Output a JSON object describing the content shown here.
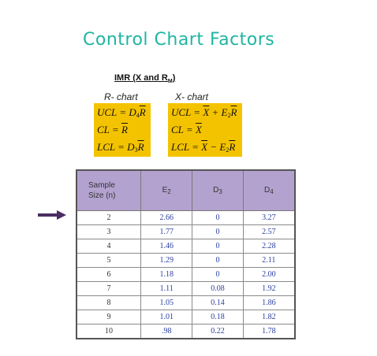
{
  "title": "Control Chart Factors",
  "heading": {
    "main": "IMR  (X and R",
    "sub": "M",
    "close": ")"
  },
  "r_chart": {
    "label": "R- chart",
    "lines": [
      {
        "a": "UCL = D",
        "sub": "4",
        "b": "R"
      },
      {
        "a": "CL = ",
        "sub": "",
        "b": "R"
      },
      {
        "a": "LCL = D",
        "sub": "3",
        "b": "R"
      }
    ]
  },
  "x_chart": {
    "label": "X- chart",
    "lines": [
      {
        "a": "UCL = ",
        "x": "X",
        "mid": " + E",
        "sub": "2",
        "b": "R"
      },
      {
        "a": "CL = ",
        "x": "X",
        "mid": "",
        "sub": "",
        "b": ""
      },
      {
        "a": "LCL = ",
        "x": "X",
        "mid": " − E",
        "sub": "2",
        "b": "R"
      }
    ]
  },
  "table": {
    "headers": [
      {
        "main": "Sample",
        "line2": "Size (n)",
        "sub": ""
      },
      {
        "main": "E",
        "line2": "",
        "sub": "2"
      },
      {
        "main": "D",
        "line2": "",
        "sub": "3"
      },
      {
        "main": "D",
        "line2": "",
        "sub": "4"
      }
    ],
    "rows": [
      [
        "2",
        "2.66",
        "0",
        "3.27"
      ],
      [
        "3",
        "1.77",
        "0",
        "2.57"
      ],
      [
        "4",
        "1.46",
        "0",
        "2.28"
      ],
      [
        "5",
        "1.29",
        "0",
        "2.11"
      ],
      [
        "6",
        "1.18",
        "0",
        "2.00"
      ],
      [
        "7",
        "1.11",
        "0.08",
        "1.92"
      ],
      [
        "8",
        "1.05",
        "0.14",
        "1.86"
      ],
      [
        "9",
        "1.01",
        "0.18",
        "1.82"
      ],
      [
        "10",
        ".98",
        "0.22",
        "1.78"
      ]
    ]
  },
  "colors": {
    "title": "#1fb5a3",
    "box": "#f4c300",
    "header": "#b3a2cf",
    "arrow": "#4a2d63",
    "values": "#2a3f9e"
  },
  "icons": {
    "arrow": "right-arrow-icon"
  }
}
